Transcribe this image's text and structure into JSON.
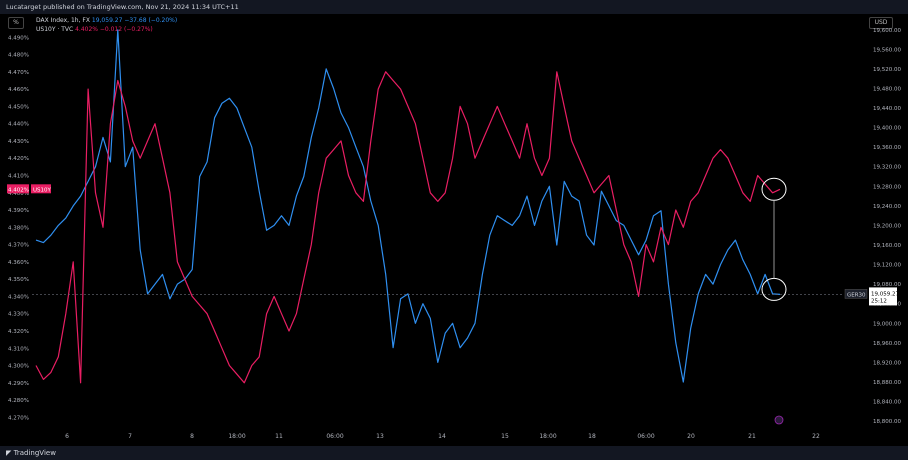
{
  "header": {
    "published": "Lucatarget published on TradingView.com, Nov 21, 2024 11:34 UTC+11"
  },
  "toolbar": {
    "left_button": "%",
    "currency_button": "USD"
  },
  "legend": {
    "dax_symbol": "DAX Index, 1h, FX",
    "dax_values": "19,059.27  −37.68 (−0.20%)",
    "us10y_symbol": "US10Y · TVC",
    "us10y_values": "4.402%  −0.012 (−0.27%)"
  },
  "footer": {
    "brand": "TradingView"
  },
  "colors": {
    "dax": "#2f8ff0",
    "us10y": "#e91e63",
    "background": "#000000",
    "text": "#b2b5be"
  },
  "chart_data": {
    "type": "line",
    "title": "",
    "left_axis": {
      "ticks": [
        "4.490%",
        "4.480%",
        "4.470%",
        "4.460%",
        "4.450%",
        "4.440%",
        "4.430%",
        "4.420%",
        "4.410%",
        "4.400%",
        "4.390%",
        "4.380%",
        "4.370%",
        "4.360%",
        "4.350%",
        "4.340%",
        "4.330%",
        "4.320%",
        "4.310%",
        "4.300%",
        "4.290%",
        "4.280%",
        "4.270%"
      ],
      "range": [
        4.265,
        4.5
      ]
    },
    "right_axis": {
      "ticks": [
        "19,600.00",
        "19,560.00",
        "19,520.00",
        "19,480.00",
        "19,440.00",
        "19,400.00",
        "19,360.00",
        "19,320.00",
        "19,280.00",
        "19,240.00",
        "19,200.00",
        "19,160.00",
        "19,120.00",
        "19,080.00",
        "19,040.00",
        "19,000.00",
        "18,960.00",
        "18,920.00",
        "18,880.00",
        "18,840.00",
        "18,800.00"
      ],
      "range": [
        18790,
        19620
      ]
    },
    "x_ticks": [
      "6",
      "7",
      "8",
      "18:00",
      "11",
      "06:00",
      "13",
      "14",
      "15",
      "18:00",
      "18",
      "06:00",
      "20",
      "21",
      "22"
    ],
    "last_labels": {
      "us10y_value": "4.402%",
      "us10y_tag": "US10Y",
      "dax_tag": "GER30",
      "dax_value": "19,059.27",
      "dax_countdown": "25:12"
    },
    "series": [
      {
        "name": "DAX Index",
        "axis": "right",
        "color": "#2f8ff0",
        "x": [
          0,
          2,
          4,
          6,
          8,
          10,
          12,
          14,
          16,
          18,
          20,
          22,
          24,
          26,
          28,
          30,
          32,
          34,
          36,
          38,
          40,
          42,
          44,
          46,
          48,
          50,
          52,
          54,
          56,
          58,
          60,
          62,
          64,
          66,
          68,
          70,
          72,
          74,
          76,
          78,
          80,
          82,
          84,
          86,
          88,
          90,
          92,
          94,
          96,
          98,
          100,
          102,
          104,
          106,
          108,
          110,
          112,
          114,
          116,
          118,
          120,
          122,
          124,
          126,
          128,
          130,
          132,
          134,
          136,
          138,
          140,
          142,
          144,
          146,
          148,
          150,
          152,
          154,
          156,
          158,
          160,
          162,
          164,
          166,
          168,
          170,
          172,
          174,
          176,
          178,
          180,
          182,
          184,
          186,
          188,
          190,
          192,
          194,
          196,
          198,
          200
        ],
        "values": [
          19170,
          19165,
          19180,
          19200,
          19215,
          19240,
          19260,
          19290,
          19320,
          19380,
          19330,
          19600,
          19320,
          19360,
          19150,
          19060,
          19080,
          19100,
          19050,
          19080,
          19090,
          19110,
          19300,
          19330,
          19420,
          19450,
          19460,
          19440,
          19400,
          19360,
          19270,
          19190,
          19200,
          19220,
          19200,
          19260,
          19300,
          19380,
          19440,
          19520,
          19480,
          19430,
          19400,
          19360,
          19320,
          19250,
          19200,
          19100,
          18950,
          19050,
          19060,
          19000,
          19040,
          19010,
          18920,
          18980,
          19000,
          18950,
          18970,
          19000,
          19100,
          19180,
          19220,
          19210,
          19200,
          19220,
          19260,
          19200,
          19250,
          19280,
          19160,
          19290,
          19260,
          19250,
          19180,
          19160,
          19270,
          19240,
          19210,
          19200,
          19170,
          19140,
          19170,
          19220,
          19230,
          19080,
          18960,
          18880,
          18990,
          19060,
          19100,
          19080,
          19120,
          19150,
          19170,
          19130,
          19100,
          19060,
          19100,
          19060,
          19059
        ]
      },
      {
        "name": "US10Y",
        "axis": "left",
        "color": "#e91e63",
        "x": [
          0,
          2,
          4,
          6,
          8,
          10,
          12,
          14,
          16,
          18,
          20,
          22,
          24,
          26,
          28,
          30,
          32,
          34,
          36,
          38,
          40,
          42,
          44,
          46,
          48,
          50,
          52,
          54,
          56,
          58,
          60,
          62,
          64,
          66,
          68,
          70,
          72,
          74,
          76,
          78,
          80,
          82,
          84,
          86,
          88,
          90,
          92,
          94,
          96,
          98,
          100,
          102,
          104,
          106,
          108,
          110,
          112,
          114,
          116,
          118,
          120,
          122,
          124,
          126,
          128,
          130,
          132,
          134,
          136,
          138,
          140,
          142,
          144,
          146,
          148,
          150,
          152,
          154,
          156,
          158,
          160,
          162,
          164,
          166,
          168,
          170,
          172,
          174,
          176,
          178,
          180,
          182,
          184,
          186,
          188,
          190,
          192,
          194,
          196,
          198,
          200
        ],
        "values": [
          4.3,
          4.292,
          4.296,
          4.305,
          4.33,
          4.36,
          4.29,
          4.46,
          4.4,
          4.38,
          4.44,
          4.465,
          4.45,
          4.43,
          4.42,
          4.43,
          4.44,
          4.42,
          4.4,
          4.36,
          4.35,
          4.34,
          4.335,
          4.33,
          4.32,
          4.31,
          4.3,
          4.295,
          4.29,
          4.3,
          4.305,
          4.33,
          4.34,
          4.33,
          4.32,
          4.33,
          4.35,
          4.37,
          4.4,
          4.42,
          4.425,
          4.43,
          4.41,
          4.4,
          4.395,
          4.43,
          4.46,
          4.47,
          4.465,
          4.46,
          4.45,
          4.44,
          4.42,
          4.4,
          4.395,
          4.4,
          4.42,
          4.45,
          4.44,
          4.42,
          4.43,
          4.44,
          4.45,
          4.44,
          4.43,
          4.42,
          4.44,
          4.42,
          4.41,
          4.42,
          4.47,
          4.45,
          4.43,
          4.42,
          4.41,
          4.4,
          4.405,
          4.41,
          4.39,
          4.37,
          4.36,
          4.34,
          4.37,
          4.36,
          4.38,
          4.37,
          4.39,
          4.38,
          4.395,
          4.4,
          4.41,
          4.42,
          4.425,
          4.42,
          4.41,
          4.4,
          4.395,
          4.41,
          4.405,
          4.4,
          4.402
        ]
      }
    ]
  }
}
